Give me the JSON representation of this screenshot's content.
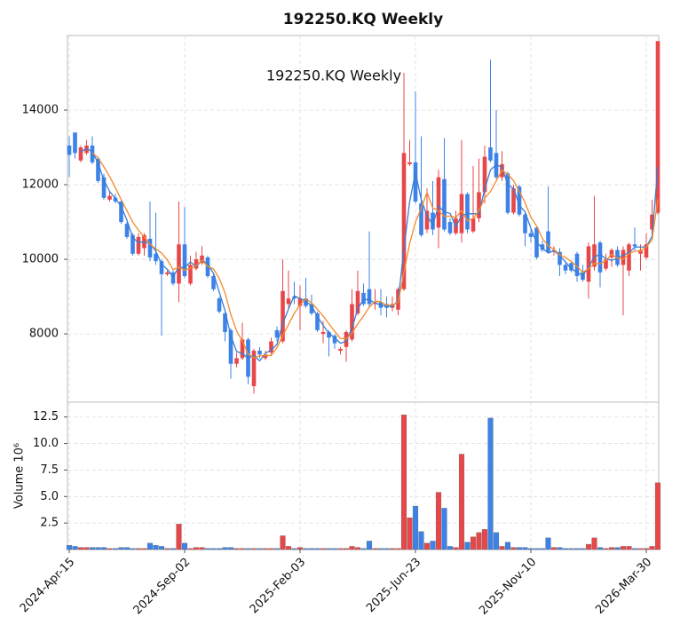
{
  "chart_data": {
    "type": "candlestick",
    "title": "192250.KQ  Weekly",
    "annotation": "192250.KQ  Weekly",
    "volume_label": "Volume  10⁶",
    "up_color": "#e8474a",
    "down_color": "#3c82e8",
    "grid": true,
    "categories": [
      "2024-Apr-15",
      null,
      null,
      null,
      null,
      null,
      null,
      null,
      null,
      null,
      null,
      null,
      null,
      null,
      null,
      null,
      null,
      null,
      null,
      null,
      "2024-Sep-02",
      null,
      null,
      null,
      null,
      null,
      null,
      null,
      null,
      null,
      null,
      null,
      null,
      null,
      null,
      null,
      null,
      null,
      null,
      null,
      "2025-Feb-03",
      null,
      null,
      null,
      null,
      null,
      null,
      null,
      null,
      null,
      null,
      null,
      null,
      null,
      null,
      null,
      null,
      null,
      null,
      null,
      "2025-Jun-23",
      null,
      null,
      null,
      null,
      null,
      null,
      null,
      null,
      null,
      null,
      null,
      null,
      null,
      null,
      null,
      null,
      null,
      null,
      null,
      "2025-Nov-10",
      null,
      null,
      null,
      null,
      null,
      null,
      null,
      null,
      null,
      null,
      null,
      null,
      null,
      null,
      null,
      null,
      null,
      null,
      null,
      "2026-Mar-30",
      null,
      null
    ],
    "open": [
      13050,
      13400,
      12650,
      12850,
      13050,
      12700,
      12200,
      11600,
      11650,
      11550,
      10950,
      10650,
      10150,
      10300,
      10550,
      10150,
      9950,
      9600,
      9650,
      9350,
      10400,
      9350,
      9750,
      9900,
      10050,
      9550,
      8950,
      8550,
      8100,
      7200,
      7350,
      7850,
      6600,
      7550,
      7350,
      7500,
      8100,
      7800,
      8800,
      9000,
      8750,
      8950,
      8800,
      8550,
      8000,
      8050,
      7950,
      7550,
      7650,
      7850,
      8550,
      9100,
      9200,
      8800,
      8850,
      8800,
      8700,
      8650,
      9200,
      12550,
      12600,
      11500,
      10800,
      11250,
      10850,
      12150,
      11000,
      10700,
      10700,
      11750,
      10750,
      11100,
      11800,
      13000,
      12850,
      12200,
      12300,
      11250,
      11950,
      11200,
      10700,
      10850,
      10400,
      10750,
      10200,
      10200,
      9850,
      9900,
      10150,
      9650,
      9400,
      9800,
      10450,
      9750,
      10050,
      10250,
      9850,
      9700,
      10400,
      10150,
      10050,
      10800,
      11250
    ],
    "high": [
      13300,
      13400,
      13050,
      13200,
      13300,
      12750,
      12300,
      11800,
      11750,
      11600,
      11000,
      10700,
      10700,
      10700,
      11550,
      11250,
      10000,
      9700,
      9700,
      11550,
      11400,
      10100,
      10200,
      10350,
      10100,
      9600,
      9000,
      8600,
      8150,
      7500,
      8300,
      7900,
      7600,
      7650,
      7550,
      7900,
      8200,
      10000,
      9700,
      9400,
      9300,
      9500,
      9050,
      8600,
      8350,
      8100,
      8000,
      7650,
      8100,
      9200,
      9700,
      9350,
      10750,
      9200,
      9200,
      9000,
      9000,
      9250,
      15000,
      13200,
      14500,
      13300,
      11900,
      12100,
      12400,
      13250,
      11100,
      11300,
      13200,
      11800,
      12500,
      12700,
      13050,
      15350,
      14000,
      12900,
      12350,
      12000,
      12000,
      11250,
      10800,
      10900,
      10500,
      11950,
      10350,
      10300,
      9900,
      9950,
      10200,
      9850,
      10450,
      11700,
      10500,
      10150,
      10300,
      10350,
      10350,
      10450,
      10850,
      10400,
      10700,
      11600,
      15850
    ],
    "low": [
      12200,
      12700,
      12600,
      12800,
      12550,
      12050,
      11600,
      11550,
      11500,
      10950,
      10550,
      10100,
      10100,
      10100,
      9950,
      9850,
      7950,
      9550,
      9300,
      8850,
      9500,
      9300,
      9700,
      9850,
      9500,
      9150,
      8550,
      7800,
      6800,
      7100,
      7300,
      6650,
      6400,
      7350,
      7300,
      7450,
      7800,
      7750,
      8700,
      8800,
      8100,
      8700,
      8500,
      8050,
      7750,
      7400,
      7600,
      7450,
      7250,
      7800,
      8500,
      8750,
      8700,
      8650,
      8500,
      8450,
      8600,
      8500,
      9150,
      12500,
      11500,
      10600,
      10700,
      10650,
      10300,
      10750,
      10650,
      10650,
      10450,
      10700,
      10700,
      11000,
      11500,
      12600,
      12150,
      12100,
      11200,
      11200,
      11150,
      10350,
      10450,
      10000,
      10200,
      10150,
      10100,
      9550,
      9600,
      9650,
      9400,
      9400,
      8950,
      9700,
      9250,
      9700,
      9800,
      9800,
      8500,
      9550,
      10200,
      9700,
      10000,
      10700,
      11200
    ],
    "close": [
      12800,
      12850,
      13000,
      13050,
      12600,
      12100,
      11650,
      11700,
      11550,
      11000,
      10600,
      10150,
      10600,
      10650,
      10050,
      9950,
      9600,
      9650,
      9350,
      10400,
      9550,
      9850,
      10000,
      10100,
      9550,
      9200,
      8600,
      8050,
      7200,
      7350,
      7850,
      6850,
      7550,
      7450,
      7450,
      7800,
      7900,
      9150,
      8950,
      8950,
      8950,
      8750,
      8550,
      8100,
      8050,
      7900,
      7750,
      7600,
      8050,
      8800,
      9150,
      8800,
      8800,
      8850,
      8700,
      8700,
      8800,
      9200,
      12850,
      12600,
      11550,
      10650,
      11300,
      10800,
      12200,
      10800,
      10700,
      11100,
      11750,
      10800,
      11100,
      11800,
      12750,
      12650,
      12200,
      12550,
      11250,
      11900,
      11200,
      10700,
      10600,
      10050,
      10250,
      10200,
      10250,
      9850,
      9700,
      9700,
      9550,
      9450,
      10350,
      10400,
      9650,
      10000,
      10250,
      9850,
      10250,
      10400,
      10350,
      10250,
      10400,
      11200,
      15850
    ],
    "volume": [
      0.4,
      0.3,
      0.2,
      0.2,
      0.2,
      0.2,
      0.2,
      0.1,
      0.1,
      0.2,
      0.2,
      0.1,
      0.1,
      0.1,
      0.6,
      0.4,
      0.3,
      0.1,
      0.1,
      2.4,
      0.6,
      0.1,
      0.2,
      0.2,
      0.1,
      0.1,
      0.1,
      0.2,
      0.2,
      0.1,
      0.1,
      0.1,
      0.1,
      0.1,
      0.1,
      0.1,
      0.1,
      1.3,
      0.3,
      0.1,
      0.2,
      0.1,
      0.1,
      0.1,
      0.1,
      0.1,
      0.1,
      0.1,
      0.1,
      0.3,
      0.2,
      0.1,
      0.8,
      0.1,
      0.1,
      0.1,
      0.1,
      0.1,
      12.7,
      3.0,
      4.1,
      1.7,
      0.6,
      0.8,
      5.4,
      3.9,
      0.3,
      0.2,
      9.0,
      0.7,
      1.2,
      1.6,
      1.9,
      12.4,
      1.6,
      0.3,
      0.7,
      0.2,
      0.2,
      0.2,
      0.1,
      0.1,
      0.1,
      1.1,
      0.2,
      0.2,
      0.1,
      0.1,
      0.1,
      0.1,
      0.5,
      1.1,
      0.2,
      0.1,
      0.2,
      0.2,
      0.3,
      0.3,
      0.1,
      0.1,
      0.1,
      0.3,
      6.3
    ],
    "series": [
      {
        "color": "#3a7dd0",
        "values": [
          null,
          null,
          12880,
          12970,
          12880,
          12580,
          12120,
          11820,
          11630,
          11420,
          11050,
          10580,
          10450,
          10470,
          10430,
          10220,
          9870,
          9730,
          9530,
          9800,
          9770,
          9930,
          9800,
          9980,
          9880,
          9620,
          9120,
          8620,
          7950,
          7530,
          7470,
          7350,
          7420,
          7280,
          7480,
          7570,
          7720,
          8280,
          8670,
          9020,
          8950,
          8880,
          8750,
          8470,
          8230,
          8020,
          7900,
          7750,
          7800,
          8150,
          8670,
          8920,
          8920,
          8820,
          8780,
          8750,
          8730,
          8900,
          10280,
          11550,
          12330,
          11600,
          11170,
          10920,
          11430,
          11270,
          11230,
          10870,
          11180,
          11220,
          11220,
          11230,
          11880,
          12400,
          12530,
          12470,
          12000,
          11900,
          11450,
          11270,
          10830,
          10450,
          10300,
          10170,
          10230,
          10100,
          9930,
          9750,
          9650,
          9570,
          9780,
          10070,
          10130,
          10020,
          9970,
          10030,
          10120,
          10170,
          10330,
          10330,
          10330,
          10620,
          12480
        ]
      },
      {
        "color": "#f58a2a",
        "values": [
          null,
          null,
          null,
          null,
          12860,
          12720,
          12480,
          12220,
          11920,
          11600,
          11300,
          11000,
          10780,
          10600,
          10410,
          10280,
          10170,
          9980,
          9720,
          9790,
          9710,
          9760,
          9830,
          9980,
          9810,
          9740,
          9490,
          9100,
          8520,
          8080,
          7810,
          7460,
          7360,
          7410,
          7430,
          7420,
          7630,
          7950,
          8250,
          8550,
          8780,
          8950,
          8830,
          8660,
          8480,
          8270,
          8070,
          7880,
          7870,
          8020,
          8270,
          8480,
          8720,
          8880,
          8860,
          8770,
          8770,
          8850,
          9650,
          10430,
          11000,
          11370,
          11790,
          11380,
          11300,
          11150,
          11160,
          11120,
          11310,
          11030,
          11090,
          11310,
          11640,
          11820,
          12100,
          12390,
          12280,
          12110,
          11820,
          11520,
          11130,
          10890,
          10560,
          10360,
          10270,
          10120,
          10050,
          9940,
          9810,
          9650,
          9750,
          9890,
          9880,
          9970,
          10130,
          10030,
          10000,
          10150,
          10220,
          10220,
          10330,
          10520,
          11610
        ]
      }
    ],
    "ylim": [
      6170,
      16000
    ],
    "yticks": [
      8000,
      10000,
      12000,
      14000
    ],
    "y2lim": [
      0,
      13.9
    ],
    "y2ticks": [
      2.5,
      {
        "value": 5,
        "label": "5.0"
      },
      7.5,
      {
        "value": 10,
        "label": "10.0"
      },
      12.5
    ]
  }
}
